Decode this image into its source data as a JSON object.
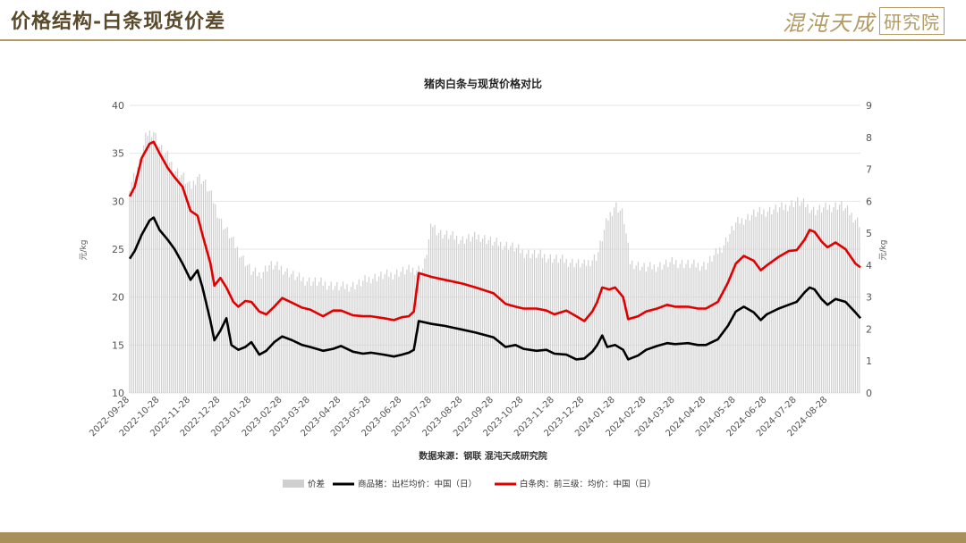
{
  "header": {
    "title": "价格结构-白条现货价差",
    "logo_main": "混沌天成",
    "logo_box": "研究院"
  },
  "colors": {
    "spread": "#cfcfcf",
    "hog": "#000000",
    "carcass": "#e00000",
    "accent": "#b29a62"
  },
  "chart_data": {
    "type": "line",
    "title": "猪肉白条与现货价格对比",
    "ylabel_left": "元/kg",
    "ylabel_right": "元/kg",
    "ylim_left": [
      10,
      40
    ],
    "ylim_right": [
      0,
      9
    ],
    "yticks_left": [
      10,
      15,
      20,
      25,
      30,
      35,
      40
    ],
    "yticks_right": [
      0,
      1,
      2,
      3,
      4,
      5,
      6,
      7,
      8,
      9
    ],
    "x": [
      "2022-09-28",
      "2022-10-28",
      "2022-11-28",
      "2022-12-28",
      "2023-01-28",
      "2023-02-28",
      "2023-03-28",
      "2023-04-28",
      "2023-05-28",
      "2023-06-28",
      "2023-07-28",
      "2023-08-28",
      "2023-09-28",
      "2023-10-28",
      "2023-11-28",
      "2023-12-28",
      "2024-01-28",
      "2024-02-28",
      "2024-03-28",
      "2024-04-28",
      "2024-05-28",
      "2024-06-28",
      "2024-07-28",
      "2024-08-28"
    ],
    "x_end": "2024-09-30",
    "grid": "horizontal",
    "source": "数据来源：钢联 混沌天成研究院",
    "legend_position": "bottom",
    "series": [
      {
        "name": "价差",
        "type": "bar",
        "axis": "right",
        "points": [
          [
            "2022-09-28",
            6.5
          ],
          [
            "2022-10-08",
            7.2
          ],
          [
            "2022-10-15",
            8.1
          ],
          [
            "2022-10-22",
            8.2
          ],
          [
            "2022-10-28",
            7.7
          ],
          [
            "2022-11-05",
            7.4
          ],
          [
            "2022-11-12",
            7.0
          ],
          [
            "2022-11-20",
            6.8
          ],
          [
            "2022-11-28",
            6.4
          ],
          [
            "2022-12-05",
            6.8
          ],
          [
            "2022-12-12",
            6.6
          ],
          [
            "2022-12-20",
            6.1
          ],
          [
            "2022-12-28",
            5.4
          ],
          [
            "2023-01-05",
            5.0
          ],
          [
            "2023-01-12",
            4.6
          ],
          [
            "2023-01-20",
            4.2
          ],
          [
            "2023-01-28",
            3.8
          ],
          [
            "2023-02-05",
            3.7
          ],
          [
            "2023-02-15",
            4.0
          ],
          [
            "2023-02-28",
            3.9
          ],
          [
            "2023-03-15",
            3.6
          ],
          [
            "2023-03-28",
            3.5
          ],
          [
            "2023-04-15",
            3.4
          ],
          [
            "2023-04-28",
            3.3
          ],
          [
            "2023-05-15",
            3.4
          ],
          [
            "2023-05-28",
            3.6
          ],
          [
            "2023-06-15",
            3.7
          ],
          [
            "2023-06-28",
            3.8
          ],
          [
            "2023-07-20",
            3.9
          ],
          [
            "2023-07-28",
            5.3
          ],
          [
            "2023-08-05",
            5.0
          ],
          [
            "2023-08-28",
            4.8
          ],
          [
            "2023-09-15",
            4.9
          ],
          [
            "2023-09-28",
            4.7
          ],
          [
            "2023-10-15",
            4.6
          ],
          [
            "2023-10-28",
            4.4
          ],
          [
            "2023-11-15",
            4.3
          ],
          [
            "2023-11-28",
            4.2
          ],
          [
            "2023-12-15",
            4.1
          ],
          [
            "2023-12-28",
            4.0
          ],
          [
            "2024-01-10",
            4.3
          ],
          [
            "2024-01-20",
            5.4
          ],
          [
            "2024-01-28",
            5.9
          ],
          [
            "2024-02-05",
            5.6
          ],
          [
            "2024-02-12",
            4.1
          ],
          [
            "2024-02-28",
            3.9
          ],
          [
            "2024-03-15",
            4.0
          ],
          [
            "2024-03-28",
            4.1
          ],
          [
            "2024-04-15",
            4.0
          ],
          [
            "2024-04-28",
            4.0
          ],
          [
            "2024-05-15",
            4.6
          ],
          [
            "2024-05-28",
            5.3
          ],
          [
            "2024-06-15",
            5.6
          ],
          [
            "2024-06-28",
            5.7
          ],
          [
            "2024-07-15",
            5.8
          ],
          [
            "2024-07-28",
            6.0
          ],
          [
            "2024-08-05",
            5.9
          ],
          [
            "2024-08-15",
            5.7
          ],
          [
            "2024-08-28",
            5.8
          ],
          [
            "2024-09-10",
            5.9
          ],
          [
            "2024-09-30",
            5.3
          ]
        ]
      },
      {
        "name": "商品猪：出栏均价：中国（日）",
        "type": "line",
        "axis": "left",
        "points": [
          [
            "2022-09-28",
            24.0
          ],
          [
            "2022-10-03",
            24.8
          ],
          [
            "2022-10-10",
            26.5
          ],
          [
            "2022-10-18",
            28.0
          ],
          [
            "2022-10-22",
            28.3
          ],
          [
            "2022-10-28",
            27.0
          ],
          [
            "2022-11-05",
            26.0
          ],
          [
            "2022-11-12",
            25.0
          ],
          [
            "2022-11-20",
            23.5
          ],
          [
            "2022-11-28",
            21.8
          ],
          [
            "2022-12-05",
            22.8
          ],
          [
            "2022-12-10",
            21.0
          ],
          [
            "2022-12-18",
            17.5
          ],
          [
            "2022-12-22",
            15.5
          ],
          [
            "2022-12-28",
            16.5
          ],
          [
            "2023-01-03",
            17.8
          ],
          [
            "2023-01-08",
            15.0
          ],
          [
            "2023-01-15",
            14.5
          ],
          [
            "2023-01-22",
            14.8
          ],
          [
            "2023-01-28",
            15.3
          ],
          [
            "2023-02-05",
            14.0
          ],
          [
            "2023-02-12",
            14.4
          ],
          [
            "2023-02-20",
            15.3
          ],
          [
            "2023-02-28",
            15.9
          ],
          [
            "2023-03-10",
            15.5
          ],
          [
            "2023-03-20",
            15.0
          ],
          [
            "2023-03-28",
            14.8
          ],
          [
            "2023-04-10",
            14.4
          ],
          [
            "2023-04-20",
            14.6
          ],
          [
            "2023-04-28",
            14.9
          ],
          [
            "2023-05-10",
            14.3
          ],
          [
            "2023-05-20",
            14.1
          ],
          [
            "2023-05-28",
            14.2
          ],
          [
            "2023-06-10",
            14.0
          ],
          [
            "2023-06-20",
            13.8
          ],
          [
            "2023-06-28",
            14.0
          ],
          [
            "2023-07-05",
            14.2
          ],
          [
            "2023-07-10",
            14.5
          ],
          [
            "2023-07-15",
            17.5
          ],
          [
            "2023-07-28",
            17.2
          ],
          [
            "2023-08-10",
            17.0
          ],
          [
            "2023-08-28",
            16.6
          ],
          [
            "2023-09-10",
            16.3
          ],
          [
            "2023-09-28",
            15.8
          ],
          [
            "2023-10-10",
            14.8
          ],
          [
            "2023-10-20",
            15.0
          ],
          [
            "2023-10-28",
            14.6
          ],
          [
            "2023-11-10",
            14.4
          ],
          [
            "2023-11-20",
            14.5
          ],
          [
            "2023-11-28",
            14.1
          ],
          [
            "2023-12-10",
            14.0
          ],
          [
            "2023-12-20",
            13.5
          ],
          [
            "2023-12-28",
            13.6
          ],
          [
            "2024-01-05",
            14.3
          ],
          [
            "2024-01-10",
            15.0
          ],
          [
            "2024-01-15",
            16.0
          ],
          [
            "2024-01-20",
            14.8
          ],
          [
            "2024-01-28",
            15.0
          ],
          [
            "2024-02-05",
            14.5
          ],
          [
            "2024-02-10",
            13.5
          ],
          [
            "2024-02-20",
            13.9
          ],
          [
            "2024-02-28",
            14.5
          ],
          [
            "2024-03-10",
            14.9
          ],
          [
            "2024-03-20",
            15.2
          ],
          [
            "2024-03-28",
            15.1
          ],
          [
            "2024-04-10",
            15.2
          ],
          [
            "2024-04-20",
            15.0
          ],
          [
            "2024-04-28",
            15.0
          ],
          [
            "2024-05-10",
            15.6
          ],
          [
            "2024-05-20",
            17.0
          ],
          [
            "2024-05-28",
            18.5
          ],
          [
            "2024-06-05",
            19.0
          ],
          [
            "2024-06-15",
            18.4
          ],
          [
            "2024-06-22",
            17.6
          ],
          [
            "2024-06-28",
            18.2
          ],
          [
            "2024-07-10",
            18.8
          ],
          [
            "2024-07-20",
            19.2
          ],
          [
            "2024-07-28",
            19.5
          ],
          [
            "2024-08-05",
            20.5
          ],
          [
            "2024-08-10",
            21.0
          ],
          [
            "2024-08-15",
            20.8
          ],
          [
            "2024-08-22",
            19.8
          ],
          [
            "2024-08-28",
            19.2
          ],
          [
            "2024-09-05",
            19.8
          ],
          [
            "2024-09-15",
            19.5
          ],
          [
            "2024-09-25",
            18.4
          ],
          [
            "2024-09-30",
            17.8
          ]
        ]
      },
      {
        "name": "白条肉：前三级：均价：中国（日）",
        "type": "line",
        "axis": "left",
        "points": [
          [
            "2022-09-28",
            30.5
          ],
          [
            "2022-10-03",
            31.5
          ],
          [
            "2022-10-10",
            34.5
          ],
          [
            "2022-10-18",
            36.0
          ],
          [
            "2022-10-22",
            36.2
          ],
          [
            "2022-10-28",
            35.0
          ],
          [
            "2022-11-05",
            33.5
          ],
          [
            "2022-11-12",
            32.5
          ],
          [
            "2022-11-20",
            31.5
          ],
          [
            "2022-11-28",
            29.0
          ],
          [
            "2022-12-05",
            28.5
          ],
          [
            "2022-12-10",
            26.5
          ],
          [
            "2022-12-18",
            23.5
          ],
          [
            "2022-12-22",
            21.2
          ],
          [
            "2022-12-28",
            22.0
          ],
          [
            "2023-01-03",
            21.0
          ],
          [
            "2023-01-10",
            19.5
          ],
          [
            "2023-01-15",
            19.0
          ],
          [
            "2023-01-22",
            19.6
          ],
          [
            "2023-01-28",
            19.5
          ],
          [
            "2023-02-05",
            18.5
          ],
          [
            "2023-02-12",
            18.2
          ],
          [
            "2023-02-20",
            19.0
          ],
          [
            "2023-02-28",
            19.9
          ],
          [
            "2023-03-10",
            19.4
          ],
          [
            "2023-03-20",
            18.9
          ],
          [
            "2023-03-28",
            18.7
          ],
          [
            "2023-04-10",
            18.0
          ],
          [
            "2023-04-20",
            18.6
          ],
          [
            "2023-04-28",
            18.6
          ],
          [
            "2023-05-10",
            18.1
          ],
          [
            "2023-05-20",
            18.0
          ],
          [
            "2023-05-28",
            18.0
          ],
          [
            "2023-06-10",
            17.8
          ],
          [
            "2023-06-20",
            17.6
          ],
          [
            "2023-06-28",
            17.9
          ],
          [
            "2023-07-05",
            18.0
          ],
          [
            "2023-07-10",
            18.5
          ],
          [
            "2023-07-15",
            22.5
          ],
          [
            "2023-07-28",
            22.1
          ],
          [
            "2023-08-10",
            21.8
          ],
          [
            "2023-08-28",
            21.4
          ],
          [
            "2023-09-10",
            21.0
          ],
          [
            "2023-09-28",
            20.4
          ],
          [
            "2023-10-10",
            19.3
          ],
          [
            "2023-10-20",
            19.0
          ],
          [
            "2023-10-28",
            18.8
          ],
          [
            "2023-11-10",
            18.8
          ],
          [
            "2023-11-20",
            18.6
          ],
          [
            "2023-11-28",
            18.2
          ],
          [
            "2023-12-10",
            18.6
          ],
          [
            "2023-12-20",
            18.0
          ],
          [
            "2023-12-28",
            17.5
          ],
          [
            "2024-01-05",
            18.5
          ],
          [
            "2024-01-10",
            19.5
          ],
          [
            "2024-01-15",
            21.0
          ],
          [
            "2024-01-22",
            20.8
          ],
          [
            "2024-01-28",
            21.0
          ],
          [
            "2024-02-05",
            20.0
          ],
          [
            "2024-02-10",
            17.7
          ],
          [
            "2024-02-20",
            18.0
          ],
          [
            "2024-02-28",
            18.5
          ],
          [
            "2024-03-10",
            18.8
          ],
          [
            "2024-03-20",
            19.2
          ],
          [
            "2024-03-28",
            19.0
          ],
          [
            "2024-04-10",
            19.0
          ],
          [
            "2024-04-20",
            18.8
          ],
          [
            "2024-04-28",
            18.8
          ],
          [
            "2024-05-10",
            19.5
          ],
          [
            "2024-05-20",
            21.5
          ],
          [
            "2024-05-28",
            23.5
          ],
          [
            "2024-06-05",
            24.3
          ],
          [
            "2024-06-15",
            23.8
          ],
          [
            "2024-06-22",
            22.8
          ],
          [
            "2024-06-28",
            23.3
          ],
          [
            "2024-07-10",
            24.2
          ],
          [
            "2024-07-20",
            24.8
          ],
          [
            "2024-07-28",
            24.9
          ],
          [
            "2024-08-05",
            26.0
          ],
          [
            "2024-08-10",
            27.0
          ],
          [
            "2024-08-15",
            26.8
          ],
          [
            "2024-08-22",
            25.8
          ],
          [
            "2024-08-28",
            25.2
          ],
          [
            "2024-09-05",
            25.7
          ],
          [
            "2024-09-15",
            25.0
          ],
          [
            "2024-09-25",
            23.5
          ],
          [
            "2024-09-30",
            23.1
          ]
        ]
      }
    ]
  }
}
